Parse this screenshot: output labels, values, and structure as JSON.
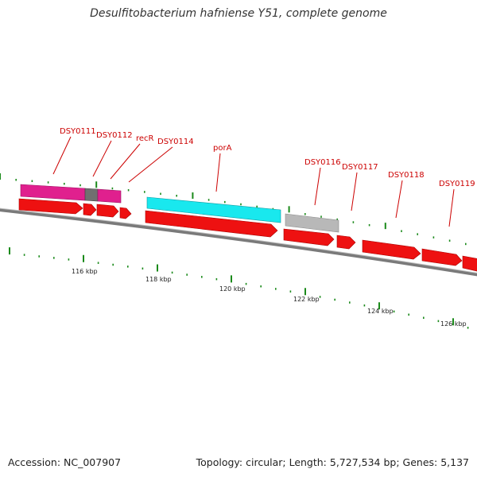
{
  "header": {
    "title": "Desulfitobacterium hafniense Y51, complete genome"
  },
  "footer": {
    "accession": "Accession: NC_007907",
    "topology": "Topology: circular; Length: 5,727,534 bp; Genes: 5,137"
  },
  "colors": {
    "gene_red": "#ee1111",
    "rna_magenta": "#e0208e",
    "pseudo_gray": "#707070",
    "cyan_feature": "#19e8ee",
    "light_gray_feature": "#b8b8b8",
    "tick_green": "#1a8a1a",
    "label_red": "#cc0000",
    "backbone": "#7a7a7a"
  },
  "gene_labels": [
    "DSY0111",
    "DSY0112",
    "recR",
    "DSY0114",
    "porA",
    "DSY0116",
    "DSY0117",
    "DSY0118",
    "DSY0119"
  ],
  "kbp_labels": [
    "116 kbp",
    "118 kbp",
    "120 kbp",
    "122 kbp",
    "124 kbp",
    "126 kbp"
  ]
}
